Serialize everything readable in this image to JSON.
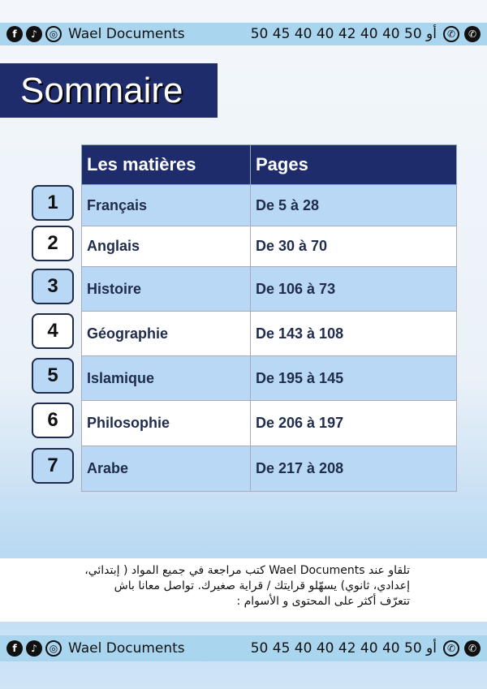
{
  "header_bar": {
    "brand": "Wael Documents",
    "phone": "50 45 40 40 أو 50 40 40 42",
    "icons": [
      "facebook-icon",
      "tiktok-icon",
      "instagram-icon",
      "whatsapp-icon",
      "phone-icon"
    ]
  },
  "title": "Sommaire",
  "table": {
    "headers": [
      "Les matières",
      "Pages"
    ],
    "rows": [
      {
        "n": "1",
        "subject": "Français",
        "pages": "De 5 à 28"
      },
      {
        "n": "2",
        "subject": "Anglais",
        "pages": "De 30 à 70"
      },
      {
        "n": "3",
        "subject": "Histoire",
        "pages": "De 106 à 73"
      },
      {
        "n": "4",
        "subject": "Géographie",
        "pages": "De 143 à 108"
      },
      {
        "n": "5",
        "subject": "Islamique",
        "pages": "De 195 à 145"
      },
      {
        "n": "6",
        "subject": "Philosophie",
        "pages": "De 206 à 197"
      },
      {
        "n": "7",
        "subject": "Arabe",
        "pages": "De 217 à 208"
      }
    ]
  },
  "note": "تلقاو عند Wael Documents كتب مراجعة في جميع المواد ( إبتدائي، إعدادي، ثانوي) يسهّلو قرايتك / قراية صغيرك. تواصل معانا باش تتعرّف أكثر على المحتوى و الأسوام :",
  "footer_bar": {
    "brand": "Wael Documents",
    "phone": "50 45 40 40 أو 50 40 40 42"
  },
  "colors": {
    "navy": "#1f2c6c",
    "light_blue": "#b8d8f5",
    "bar": "#a9d5ef"
  }
}
